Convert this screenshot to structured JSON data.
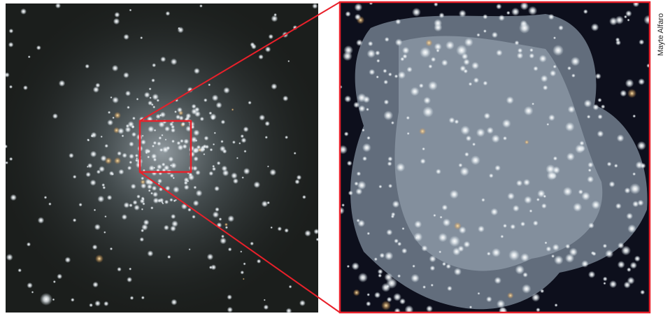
{
  "credit": "Mayte Alfaro"
}
